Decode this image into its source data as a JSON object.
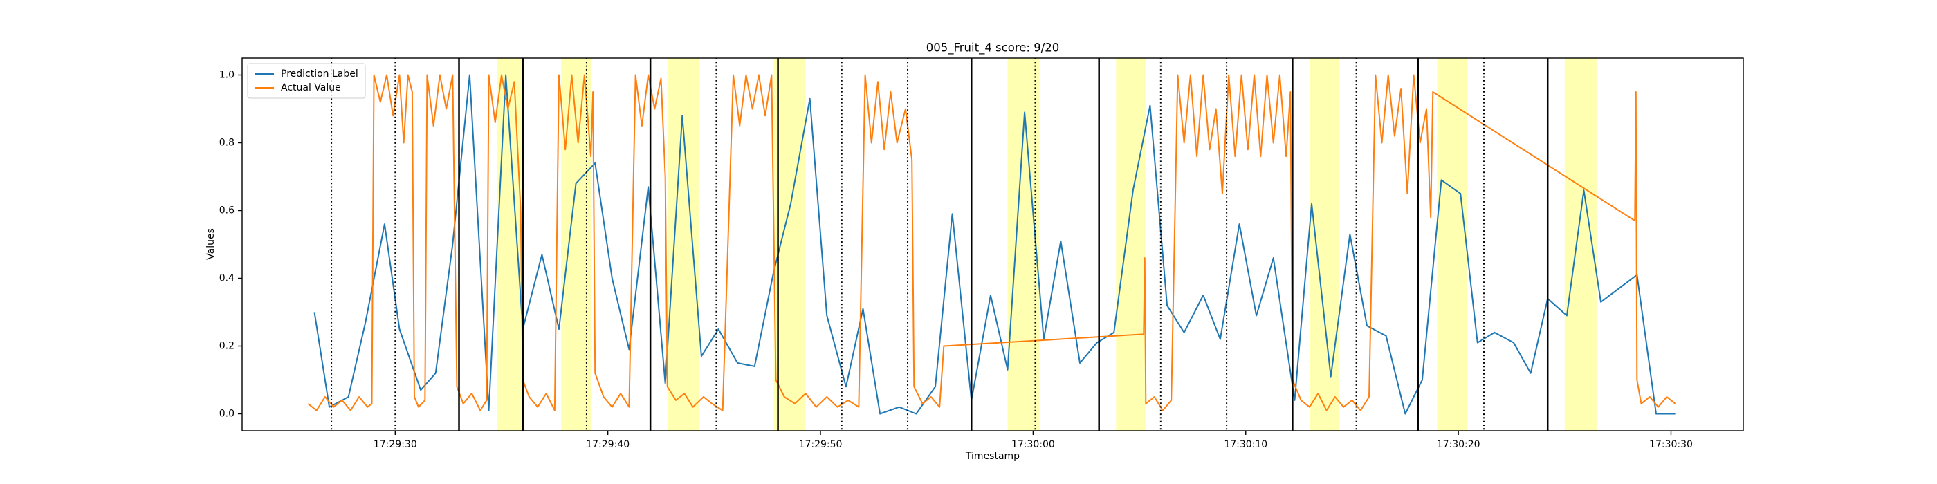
{
  "chart_data": {
    "type": "line",
    "title": "005_Fruit_4 score: 9/20",
    "xlabel": "Timestamp",
    "ylabel": "Values",
    "legend": "upper left",
    "xlim": [
      "17:29:22.8",
      "17:30:33.4"
    ],
    "xticks": [
      "17:29:30",
      "17:29:40",
      "17:29:50",
      "17:30:00",
      "17:30:10",
      "17:30:20",
      "17:30:30"
    ],
    "ylim": [
      -0.05,
      1.05
    ],
    "yticks": [
      {
        "value": 0,
        "label": "0.0"
      },
      {
        "value": 0.2,
        "label": "0.2"
      },
      {
        "value": 0.4,
        "label": "0.4"
      },
      {
        "value": 0.6,
        "label": "0.6"
      },
      {
        "value": 0.8,
        "label": "0.8"
      },
      {
        "value": 1.0,
        "label": "1.0"
      }
    ],
    "spans_color": "#ffff00",
    "spans": [
      [
        "17:29:34.8",
        "17:29:36.0"
      ],
      [
        "17:29:37.8",
        "17:29:39.2"
      ],
      [
        "17:29:42.8",
        "17:29:44.3"
      ],
      [
        "17:29:47.8",
        "17:29:49.3"
      ],
      [
        "17:29:58.8",
        "17:30:00.3"
      ],
      [
        "17:30:03.9",
        "17:30:05.3"
      ],
      [
        "17:30:13.0",
        "17:30:14.4"
      ],
      [
        "17:30:19.0",
        "17:30:20.4"
      ],
      [
        "17:30:25.0",
        "17:30:26.5"
      ]
    ],
    "vlines_solid": [
      "17:29:33.0",
      "17:29:36.0",
      "17:29:42.0",
      "17:29:48.0",
      "17:29:57.1",
      "17:30:03.1",
      "17:30:12.2",
      "17:30:18.1",
      "17:30:24.2"
    ],
    "vlines_dotted": [
      "17:29:27.0",
      "17:29:30.0",
      "17:29:39.0",
      "17:29:45.1",
      "17:29:51.0",
      "17:29:54.1",
      "17:30:00.1",
      "17:30:06.0",
      "17:30:09.1",
      "17:30:15.2",
      "17:30:21.2"
    ],
    "series": [
      {
        "name": "Prediction Label",
        "color": "#1f77b4",
        "x": [
          "17:29:26.2",
          "17:29:26.9",
          "17:29:27.8",
          "17:29:28.6",
          "17:29:29.5",
          "17:29:30.2",
          "17:29:31.2",
          "17:29:31.9",
          "17:29:32.7",
          "17:29:33.5",
          "17:29:34.4",
          "17:29:35.2",
          "17:29:36.0",
          "17:29:36.9",
          "17:29:37.7",
          "17:29:38.5",
          "17:29:39.4",
          "17:29:40.2",
          "17:29:41.0",
          "17:29:41.9",
          "17:29:42.7",
          "17:29:43.5",
          "17:29:44.4",
          "17:29:45.2",
          "17:29:46.1",
          "17:29:46.9",
          "17:29:47.8",
          "17:29:48.6",
          "17:29:49.5",
          "17:29:50.3",
          "17:29:51.2",
          "17:29:52.0",
          "17:29:52.8",
          "17:29:53.7",
          "17:29:54.5",
          "17:29:55.4",
          "17:29:56.2",
          "17:29:57.1",
          "17:29:58.0",
          "17:29:58.8",
          "17:29:59.6",
          "17:30:00.5",
          "17:30:01.3",
          "17:30:02.2",
          "17:30:03.0",
          "17:30:03.8",
          "17:30:04.7",
          "17:30:05.5",
          "17:30:06.3",
          "17:30:07.1",
          "17:30:08.0",
          "17:30:08.8",
          "17:30:09.7",
          "17:30:10.5",
          "17:30:11.3",
          "17:30:12.3",
          "17:30:13.1",
          "17:30:14.0",
          "17:30:14.9",
          "17:30:15.7",
          "17:30:16.6",
          "17:30:17.5",
          "17:30:18.3",
          "17:30:19.2",
          "17:30:20.1",
          "17:30:20.9",
          "17:30:21.7",
          "17:30:22.6",
          "17:30:23.4",
          "17:30:24.2",
          "17:30:25.1",
          "17:30:25.9",
          "17:30:26.7",
          "17:30:28.4",
          "17:30:29.3",
          "17:30:30.2"
        ],
        "values": [
          0.3,
          0.02,
          0.05,
          0.27,
          0.56,
          0.25,
          0.07,
          0.12,
          0.5,
          1.0,
          0.01,
          1.0,
          0.25,
          0.47,
          0.25,
          0.68,
          0.74,
          0.4,
          0.19,
          0.67,
          0.09,
          0.88,
          0.17,
          0.25,
          0.15,
          0.14,
          0.42,
          0.62,
          0.93,
          0.29,
          0.08,
          0.31,
          0.0,
          0.02,
          0.0,
          0.08,
          0.59,
          0.04,
          0.35,
          0.13,
          0.89,
          0.22,
          0.51,
          0.15,
          0.21,
          0.24,
          0.66,
          0.91,
          0.32,
          0.24,
          0.35,
          0.22,
          0.56,
          0.29,
          0.46,
          0.04,
          0.62,
          0.11,
          0.53,
          0.26,
          0.23,
          0.0,
          0.1,
          0.69,
          0.65,
          0.21,
          0.24,
          0.21,
          0.12,
          0.34,
          0.29,
          0.66,
          0.33,
          0.41,
          0.0,
          0.0
        ]
      },
      {
        "name": "Actual Value",
        "color": "#ff7f0e",
        "x": [
          "17:29:25.9",
          "17:29:26.3",
          "17:29:26.7",
          "17:29:27.1",
          "17:29:27.5",
          "17:29:27.9",
          "17:29:28.3",
          "17:29:28.7",
          "17:29:28.9",
          "17:29:29.0",
          "17:29:29.3",
          "17:29:29.6",
          "17:29:29.9",
          "17:29:30.2",
          "17:29:30.4",
          "17:29:30.6",
          "17:29:30.8",
          "17:29:30.9",
          "17:29:31.1",
          "17:29:31.4",
          "17:29:31.5",
          "17:29:31.8",
          "17:29:32.1",
          "17:29:32.4",
          "17:29:32.7",
          "17:29:32.9",
          "17:29:33.2",
          "17:29:33.6",
          "17:29:34.0",
          "17:29:34.3",
          "17:29:34.4",
          "17:29:34.7",
          "17:29:35.0",
          "17:29:35.3",
          "17:29:35.6",
          "17:29:35.9",
          "17:29:36.0",
          "17:29:36.3",
          "17:29:36.7",
          "17:29:37.1",
          "17:29:37.5",
          "17:29:37.7",
          "17:29:38.0",
          "17:29:38.3",
          "17:29:38.6",
          "17:29:38.9",
          "17:29:39.2",
          "17:29:39.3",
          "17:29:39.4",
          "17:29:39.8",
          "17:29:40.2",
          "17:29:40.6",
          "17:29:41.0",
          "17:29:41.3",
          "17:29:41.6",
          "17:29:41.9",
          "17:29:42.2",
          "17:29:42.5",
          "17:29:42.7",
          "17:29:42.8",
          "17:29:43.2",
          "17:29:43.6",
          "17:29:44.0",
          "17:29:44.5",
          "17:29:44.9",
          "17:29:45.4",
          "17:29:45.9",
          "17:29:46.2",
          "17:29:46.5",
          "17:29:46.8",
          "17:29:47.1",
          "17:29:47.4",
          "17:29:47.7",
          "17:29:47.9",
          "17:29:48.3",
          "17:29:48.8",
          "17:29:49.3",
          "17:29:49.8",
          "17:29:50.3",
          "17:29:50.8",
          "17:29:51.3",
          "17:29:51.8",
          "17:29:52.1",
          "17:29:52.4",
          "17:29:52.7",
          "17:29:53.0",
          "17:29:53.3",
          "17:29:53.6",
          "17:29:54.0",
          "17:29:54.3",
          "17:29:54.4",
          "17:29:54.8",
          "17:29:55.2",
          "17:29:55.6",
          "17:29:55.8",
          "17:30:05.2",
          "17:30:05.25",
          "17:30:05.3",
          "17:30:05.7",
          "17:30:06.1",
          "17:30:06.5",
          "17:30:06.8",
          "17:30:07.1",
          "17:30:07.4",
          "17:30:07.7",
          "17:30:08.0",
          "17:30:08.3",
          "17:30:08.6",
          "17:30:08.9",
          "17:30:09.2",
          "17:30:09.5",
          "17:30:09.8",
          "17:30:10.1",
          "17:30:10.4",
          "17:30:10.7",
          "17:30:11.0",
          "17:30:11.3",
          "17:30:11.6",
          "17:30:11.9",
          "17:30:12.1",
          "17:30:12.2",
          "17:30:12.6",
          "17:30:13.0",
          "17:30:13.4",
          "17:30:13.8",
          "17:30:14.2",
          "17:30:14.6",
          "17:30:15.0",
          "17:30:15.4",
          "17:30:15.8",
          "17:30:16.1",
          "17:30:16.4",
          "17:30:16.7",
          "17:30:17.0",
          "17:30:17.3",
          "17:30:17.6",
          "17:30:17.9",
          "17:30:18.2",
          "17:30:18.5",
          "17:30:18.7",
          "17:30:18.8",
          "17:30:28.3",
          "17:30:28.35",
          "17:30:28.4",
          "17:30:28.6",
          "17:30:29.0",
          "17:30:29.4",
          "17:30:29.8",
          "17:30:30.2"
        ],
        "values": [
          0.03,
          0.01,
          0.05,
          0.02,
          0.04,
          0.01,
          0.05,
          0.02,
          0.03,
          1.0,
          0.92,
          1.0,
          0.88,
          1.0,
          0.8,
          1.0,
          0.95,
          0.05,
          0.02,
          0.04,
          1.0,
          0.85,
          1.0,
          0.9,
          1.0,
          0.08,
          0.03,
          0.06,
          0.01,
          0.04,
          1.0,
          0.86,
          1.0,
          0.9,
          0.98,
          0.6,
          0.1,
          0.05,
          0.02,
          0.06,
          0.01,
          1.0,
          0.78,
          1.0,
          0.8,
          1.0,
          0.76,
          0.95,
          0.12,
          0.05,
          0.02,
          0.06,
          0.02,
          1.0,
          0.85,
          1.0,
          0.9,
          0.99,
          0.7,
          0.08,
          0.04,
          0.06,
          0.02,
          0.05,
          0.03,
          0.01,
          1.0,
          0.85,
          1.0,
          0.9,
          1.0,
          0.88,
          1.0,
          0.1,
          0.05,
          0.03,
          0.06,
          0.02,
          0.05,
          0.02,
          0.04,
          0.02,
          1.0,
          0.8,
          0.98,
          0.78,
          0.95,
          0.8,
          0.9,
          0.75,
          0.08,
          0.03,
          0.05,
          0.02,
          0.2,
          0.235,
          0.46,
          0.03,
          0.05,
          0.01,
          0.04,
          1.0,
          0.8,
          1.0,
          0.76,
          1.0,
          0.78,
          0.9,
          0.65,
          1.0,
          0.76,
          1.0,
          0.78,
          1.0,
          0.76,
          1.0,
          0.8,
          1.0,
          0.76,
          0.95,
          0.1,
          0.04,
          0.02,
          0.06,
          0.01,
          0.05,
          0.02,
          0.04,
          0.01,
          0.05,
          1.0,
          0.8,
          1.0,
          0.82,
          0.96,
          0.65,
          1.0,
          0.8,
          0.9,
          0.58,
          0.95,
          0.57,
          0.95,
          0.1,
          0.03,
          0.05,
          0.02,
          0.05,
          0.03
        ]
      }
    ]
  }
}
